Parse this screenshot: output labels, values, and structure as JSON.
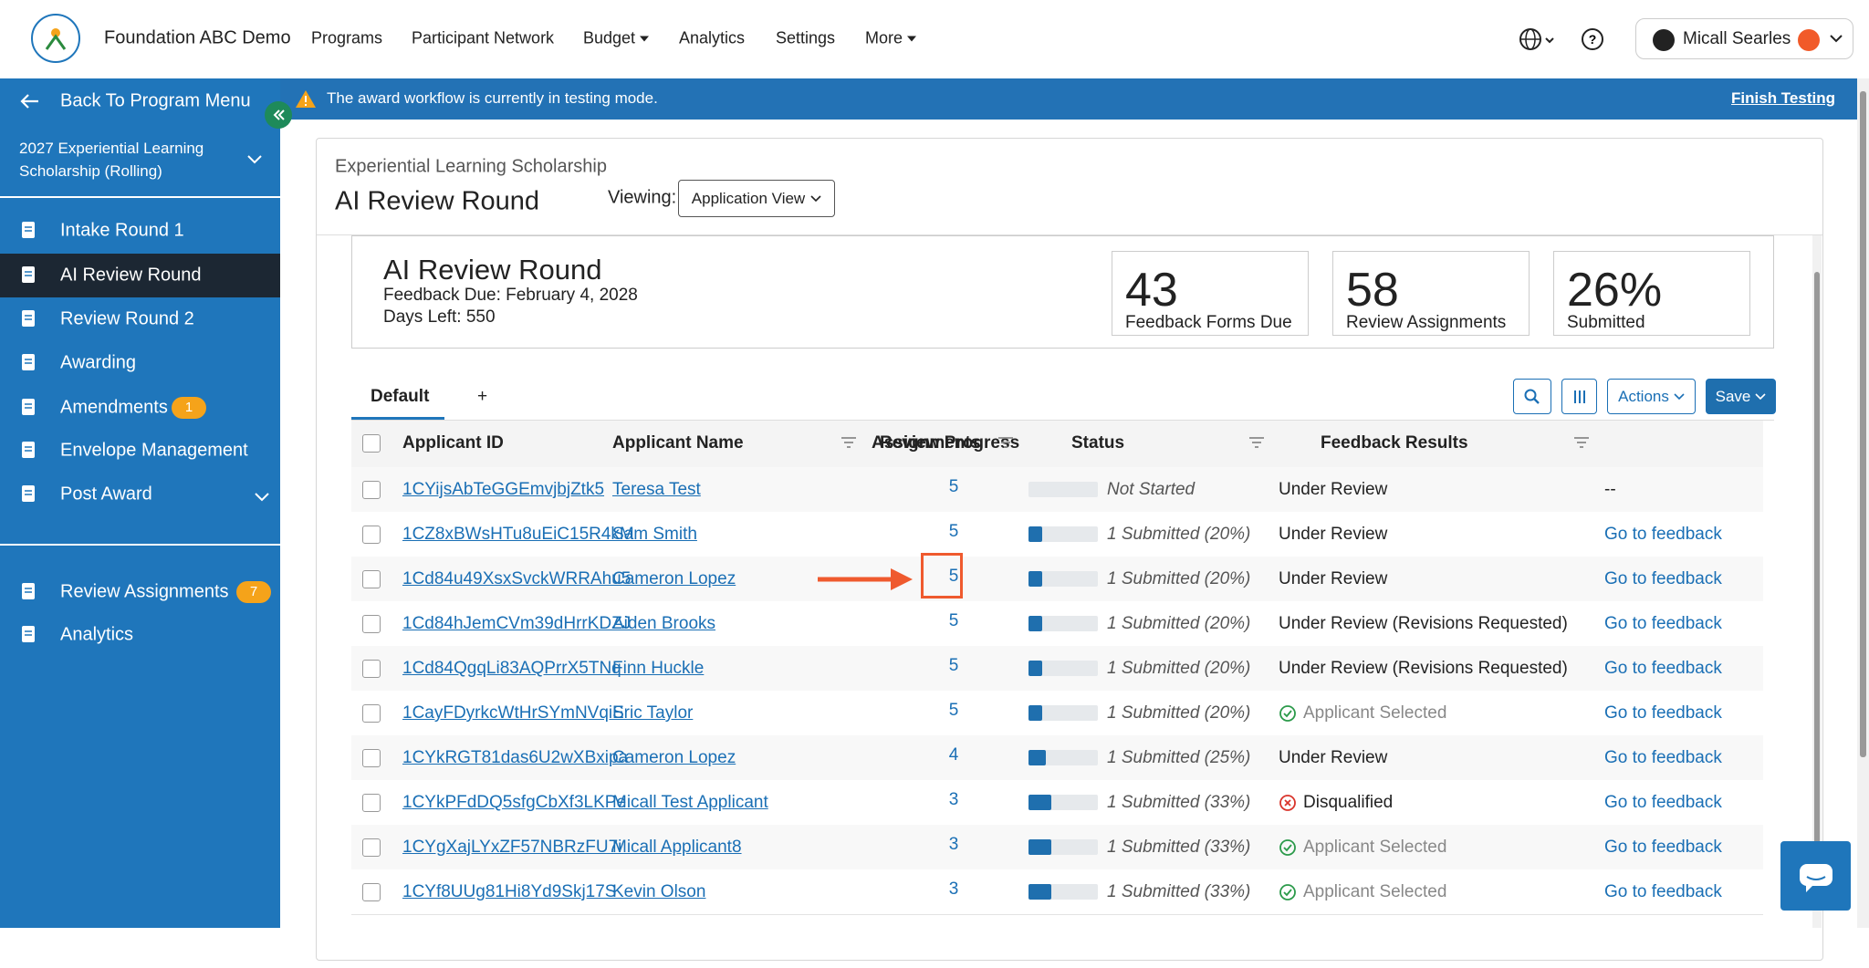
{
  "header": {
    "org": "Foundation ABC Demo",
    "nav": [
      {
        "label": "Programs",
        "dropdown": false
      },
      {
        "label": "Participant Network",
        "dropdown": false
      },
      {
        "label": "Budget",
        "dropdown": true
      },
      {
        "label": "Analytics",
        "dropdown": false
      },
      {
        "label": "Settings",
        "dropdown": false
      },
      {
        "label": "More",
        "dropdown": true
      }
    ],
    "user": "Micall Searles"
  },
  "sidebar": {
    "back": "Back To Program Menu",
    "program": "2027 Experiential Learning Scholarship (Rolling)",
    "items": [
      {
        "label": "Intake Round 1"
      },
      {
        "label": "AI Review Round",
        "active": true
      },
      {
        "label": "Review Round 2"
      },
      {
        "label": "Awarding"
      },
      {
        "label": "Amendments",
        "badge": "1"
      },
      {
        "label": "Envelope Management"
      },
      {
        "label": "Post Award",
        "expand": true
      }
    ],
    "bottom_items": [
      {
        "label": "Review Assignments",
        "badge": "7"
      },
      {
        "label": "Analytics"
      }
    ]
  },
  "banner": {
    "message": "The award workflow is currently in testing mode.",
    "action": "Finish Testing"
  },
  "page": {
    "program": "Experiential Learning Scholarship",
    "title": "AI Review Round",
    "viewing_label": "Viewing:",
    "view": "Application View"
  },
  "summary": {
    "title": "AI Review Round",
    "due": "Feedback Due: February 4, 2028",
    "days_left": "Days Left: 550",
    "stats": [
      {
        "value": "43",
        "label": "Feedback Forms Due"
      },
      {
        "value": "58",
        "label": "Review Assignments"
      },
      {
        "value": "26%",
        "label": "Submitted"
      }
    ]
  },
  "tabs": [
    "Default",
    "+"
  ],
  "toolbar": {
    "actions": "Actions",
    "save": "Save"
  },
  "table": {
    "columns": [
      "Applicant ID",
      "Applicant Name",
      "Assignments",
      "Review Progress",
      "Status",
      "Feedback Results"
    ],
    "rows": [
      {
        "id": "1CYijsAbTeGGEmvjbjZtk5",
        "name": "Teresa Test",
        "assignments": "5",
        "progress": {
          "value": 0,
          "label": "Not Started"
        },
        "status": "Under Review",
        "feedback": "--"
      },
      {
        "id": "1CZ8xBWsHTu8uEiC15R4kM",
        "name": "Sam Smith",
        "assignments": "5",
        "progress": {
          "value": 20,
          "label": "1 Submitted (20%)"
        },
        "status": "Under Review",
        "feedback": "Go to feedback"
      },
      {
        "id": "1Cd84u49XsxSvckWRRAhu5",
        "name": "Cameron Lopez",
        "assignments": "5",
        "progress": {
          "value": 20,
          "label": "1 Submitted (20%)"
        },
        "status": "Under Review",
        "feedback": "Go to feedback",
        "highlight": true
      },
      {
        "id": "1Cd84hJemCVm39dHrrKDZJ",
        "name": "Aiden Brooks",
        "assignments": "5",
        "progress": {
          "value": 20,
          "label": "1 Submitted (20%)"
        },
        "status": "Under Review (Revisions Requested)",
        "feedback": "Go to feedback"
      },
      {
        "id": "1Cd84QgqLi83AQPrrX5TNq",
        "name": "Finn Huckle",
        "assignments": "5",
        "progress": {
          "value": 20,
          "label": "1 Submitted (20%)"
        },
        "status": "Under Review (Revisions Requested)",
        "feedback": "Go to feedback"
      },
      {
        "id": "1CayFDyrkcWtHrSYmNVqiS",
        "name": "Eric Taylor",
        "assignments": "5",
        "progress": {
          "value": 20,
          "label": "1 Submitted (20%)"
        },
        "status": "Applicant Selected",
        "status_icon": "check",
        "feedback": "Go to feedback"
      },
      {
        "id": "1CYkRGT81das6U2wXBxipa",
        "name": "Cameron Lopez",
        "assignments": "4",
        "progress": {
          "value": 25,
          "label": "1 Submitted (25%)"
        },
        "status": "Under Review",
        "feedback": "Go to feedback"
      },
      {
        "id": "1CYkPFdDQ5sfgCbXf3LKPe",
        "name": "Micall Test Applicant",
        "assignments": "3",
        "progress": {
          "value": 33,
          "label": "1 Submitted (33%)"
        },
        "status": "Disqualified",
        "status_icon": "x",
        "feedback": "Go to feedback"
      },
      {
        "id": "1CYgXajLYxZF57NBRzFU7i",
        "name": "Micall Applicant8",
        "assignments": "3",
        "progress": {
          "value": 33,
          "label": "1 Submitted (33%)"
        },
        "status": "Applicant Selected",
        "status_icon": "check",
        "feedback": "Go to feedback"
      },
      {
        "id": "1CYf8UUg81Hi8Yd9Skj17S",
        "name": "Kevin Olson",
        "assignments": "3",
        "progress": {
          "value": 33,
          "label": "1 Submitted (33%)"
        },
        "status": "Applicant Selected",
        "status_icon": "check",
        "feedback": "Go to feedback"
      }
    ]
  }
}
